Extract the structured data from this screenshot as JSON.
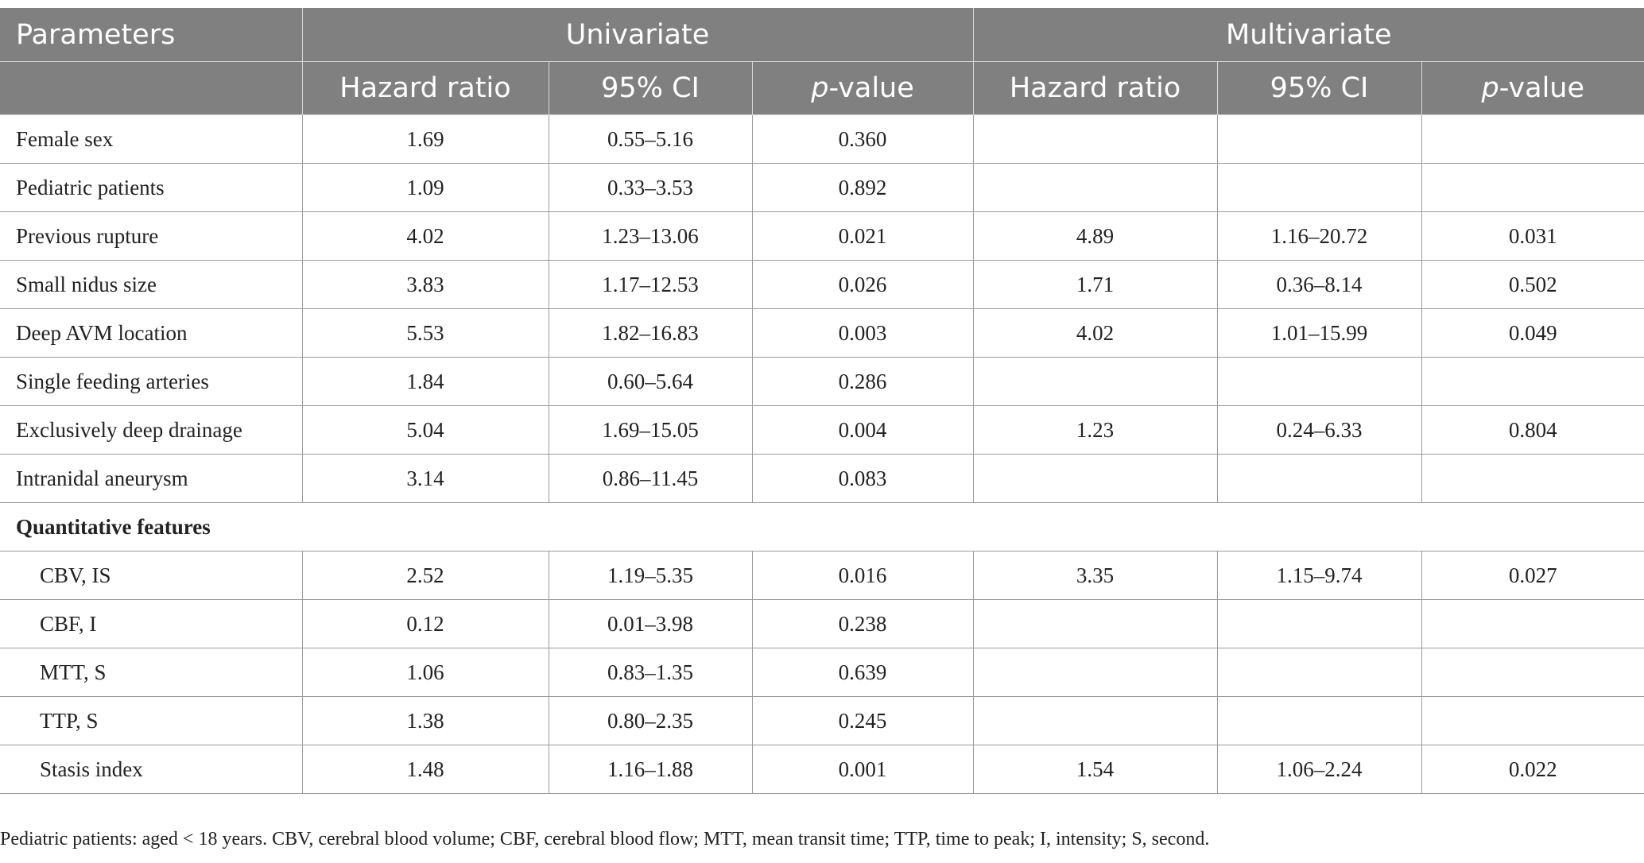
{
  "table": {
    "header": {
      "parameters": "Parameters",
      "univariate": "Univariate",
      "multivariate": "Multivariate",
      "hazard_ratio": "Hazard ratio",
      "ci": "95% CI",
      "p_prefix": "p",
      "p_suffix": "-value"
    },
    "rows": [
      {
        "label": "Female sex",
        "u_hr": "1.69",
        "u_ci": "0.55–5.16",
        "u_p": "0.360",
        "m_hr": "",
        "m_ci": "",
        "m_p": ""
      },
      {
        "label": "Pediatric patients",
        "u_hr": "1.09",
        "u_ci": "0.33–3.53",
        "u_p": "0.892",
        "m_hr": "",
        "m_ci": "",
        "m_p": ""
      },
      {
        "label": "Previous rupture",
        "u_hr": "4.02",
        "u_ci": "1.23–13.06",
        "u_p": "0.021",
        "m_hr": "4.89",
        "m_ci": "1.16–20.72",
        "m_p": "0.031"
      },
      {
        "label": "Small nidus size",
        "u_hr": "3.83",
        "u_ci": "1.17–12.53",
        "u_p": "0.026",
        "m_hr": "1.71",
        "m_ci": "0.36–8.14",
        "m_p": "0.502"
      },
      {
        "label": "Deep AVM location",
        "u_hr": "5.53",
        "u_ci": "1.82–16.83",
        "u_p": "0.003",
        "m_hr": "4.02",
        "m_ci": "1.01–15.99",
        "m_p": "0.049"
      },
      {
        "label": "Single feeding arteries",
        "u_hr": "1.84",
        "u_ci": "0.60–5.64",
        "u_p": "0.286",
        "m_hr": "",
        "m_ci": "",
        "m_p": ""
      },
      {
        "label": "Exclusively deep drainage",
        "u_hr": "5.04",
        "u_ci": "1.69–15.05",
        "u_p": "0.004",
        "m_hr": "1.23",
        "m_ci": "0.24–6.33",
        "m_p": "0.804"
      },
      {
        "label": "Intranidal aneurysm",
        "u_hr": "3.14",
        "u_ci": "0.86–11.45",
        "u_p": "0.083",
        "m_hr": "",
        "m_ci": "",
        "m_p": ""
      }
    ],
    "section_label": "Quantitative features",
    "quant_rows": [
      {
        "label": "CBV, IS",
        "u_hr": "2.52",
        "u_ci": "1.19–5.35",
        "u_p": "0.016",
        "m_hr": "3.35",
        "m_ci": "1.15–9.74",
        "m_p": "0.027"
      },
      {
        "label": "CBF, I",
        "u_hr": "0.12",
        "u_ci": "0.01–3.98",
        "u_p": "0.238",
        "m_hr": "",
        "m_ci": "",
        "m_p": ""
      },
      {
        "label": "MTT, S",
        "u_hr": "1.06",
        "u_ci": "0.83–1.35",
        "u_p": "0.639",
        "m_hr": "",
        "m_ci": "",
        "m_p": ""
      },
      {
        "label": "TTP, S",
        "u_hr": "1.38",
        "u_ci": "0.80–2.35",
        "u_p": "0.245",
        "m_hr": "",
        "m_ci": "",
        "m_p": ""
      },
      {
        "label": "Stasis index",
        "u_hr": "1.48",
        "u_ci": "1.16–1.88",
        "u_p": "0.001",
        "m_hr": "1.54",
        "m_ci": "1.06–2.24",
        "m_p": "0.022"
      }
    ]
  },
  "footnote": "Pediatric patients: aged < 18 years. CBV, cerebral blood volume; CBF, cerebral blood flow; MTT, mean transit time; TTP, time to peak; I, intensity; S, second.",
  "colors": {
    "header_bg": "#808080",
    "header_text": "#ffffff",
    "grid": "#9a9a9a"
  }
}
